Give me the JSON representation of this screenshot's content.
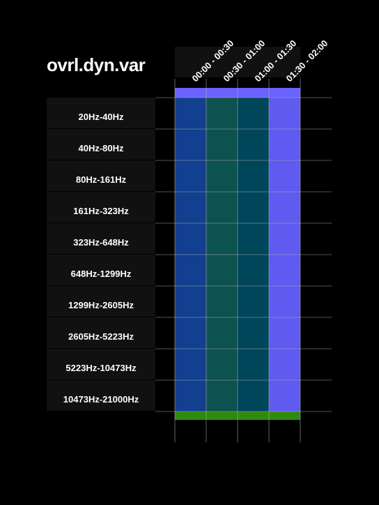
{
  "title": "ovrl.dyn.var",
  "chart_data": {
    "type": "heatmap",
    "title": "ovrl.dyn.var",
    "columns": [
      "00:00 - 00:30",
      "00:30 - 01:00",
      "01:00 - 01:30",
      "01:30 - 02:00"
    ],
    "rows": [
      "20Hz-40Hz",
      "40Hz-80Hz",
      "80Hz-161Hz",
      "161Hz-323Hz",
      "323Hz-648Hz",
      "648Hz-1299Hz",
      "1299Hz-2605Hz",
      "2605Hz-5223Hz",
      "5223Hz-10473Hz",
      "10473Hz-21000Hz"
    ],
    "cell_colors": [
      [
        "#123f8f",
        "#0d5250",
        "#00465a",
        "#5f5af0"
      ],
      [
        "#123f8f",
        "#0d5250",
        "#00465a",
        "#5f5af0"
      ],
      [
        "#123f8f",
        "#0d5250",
        "#00465a",
        "#5f5af0"
      ],
      [
        "#123f8f",
        "#0d5250",
        "#00465a",
        "#5f5af0"
      ],
      [
        "#123f8f",
        "#0d5250",
        "#00465a",
        "#5f5af0"
      ],
      [
        "#123f8f",
        "#0d5250",
        "#00465a",
        "#5f5af0"
      ],
      [
        "#123f8f",
        "#0d5250",
        "#00465a",
        "#5f5af0"
      ],
      [
        "#123f8f",
        "#0d5250",
        "#00465a",
        "#5f5af0"
      ],
      [
        "#123f8f",
        "#0d5250",
        "#00465a",
        "#5f5af0"
      ],
      [
        "#123f8f",
        "#0d5250",
        "#00465a",
        "#5f5af0"
      ]
    ],
    "top_bar_color": "#6b63ff",
    "bottom_bar_color": "#2f8a0c",
    "label_bg_color": "#111111",
    "grid_color": "#aaaaaa",
    "background": "#000000"
  }
}
